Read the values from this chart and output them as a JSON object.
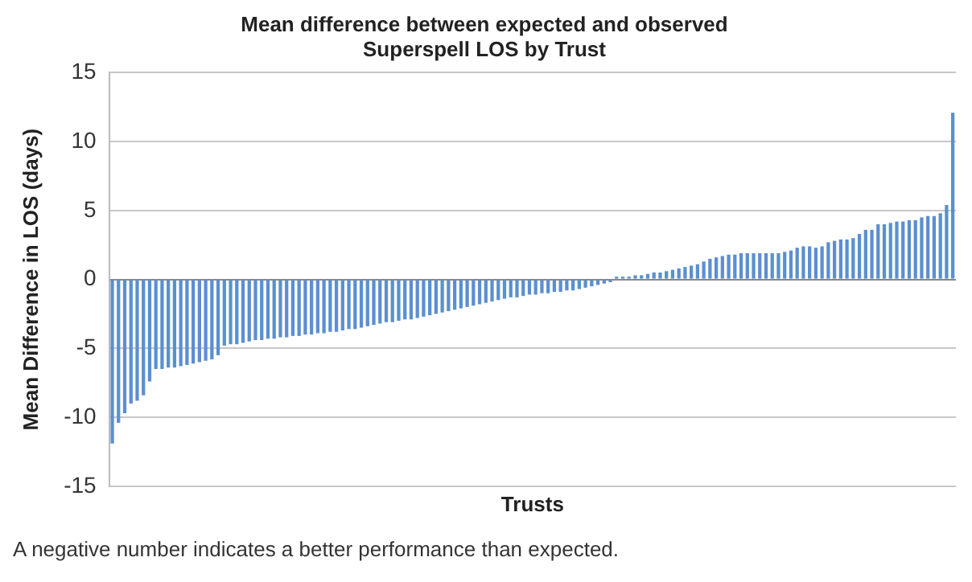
{
  "chart_data": {
    "type": "bar",
    "title": "Mean difference between expected and observed\nSuperspell LOS by Trust",
    "ylabel": "Mean Difference in LOS (days)",
    "xlabel": "Trusts",
    "annotations": [
      "A negative number indicates a better performance than expected."
    ],
    "categories": [
      null,
      null,
      null,
      null,
      null,
      null,
      null,
      null,
      null,
      null,
      null,
      null,
      null,
      null,
      null,
      null,
      null,
      null,
      null,
      null,
      null,
      null,
      null,
      null,
      null,
      null,
      null,
      null,
      null,
      null,
      null,
      null,
      null,
      null,
      null,
      null,
      null,
      null,
      null,
      null,
      null,
      null,
      null,
      null,
      null,
      null,
      null,
      null,
      null,
      null,
      null,
      null,
      null,
      null,
      null,
      null,
      null,
      null,
      null,
      null,
      null,
      null,
      null,
      null,
      null,
      null,
      null,
      null,
      null,
      null,
      null,
      null,
      null,
      null,
      null,
      null,
      null,
      null,
      null,
      null,
      null,
      null,
      null,
      null,
      null,
      null,
      null,
      null,
      null,
      null,
      null,
      null,
      null,
      null,
      null,
      null,
      null,
      null,
      null,
      null,
      null,
      null,
      null,
      null,
      null,
      null,
      null,
      null,
      null,
      null,
      null,
      null,
      null,
      null,
      null,
      null,
      null,
      null,
      null,
      null,
      null,
      null,
      null,
      null,
      null,
      null,
      null,
      null,
      null,
      null,
      null,
      null,
      null,
      null,
      null,
      null
    ],
    "values": [
      -11.9,
      -10.4,
      -9.7,
      -9.0,
      -8.8,
      -8.4,
      -7.4,
      -6.5,
      -6.5,
      -6.4,
      -6.4,
      -6.3,
      -6.2,
      -6.1,
      -6.0,
      -5.9,
      -5.8,
      -5.5,
      -4.8,
      -4.7,
      -4.7,
      -4.6,
      -4.5,
      -4.4,
      -4.4,
      -4.3,
      -4.3,
      -4.2,
      -4.2,
      -4.1,
      -4.1,
      -4.0,
      -4.0,
      -3.9,
      -3.9,
      -3.8,
      -3.8,
      -3.7,
      -3.6,
      -3.6,
      -3.5,
      -3.4,
      -3.3,
      -3.2,
      -3.1,
      -3.1,
      -3.0,
      -2.9,
      -2.9,
      -2.8,
      -2.7,
      -2.6,
      -2.5,
      -2.4,
      -2.3,
      -2.2,
      -2.1,
      -2.0,
      -1.9,
      -1.8,
      -1.7,
      -1.6,
      -1.5,
      -1.4,
      -1.3,
      -1.3,
      -1.2,
      -1.1,
      -1.1,
      -1.0,
      -1.0,
      -0.9,
      -0.9,
      -0.8,
      -0.8,
      -0.7,
      -0.6,
      -0.5,
      -0.4,
      -0.3,
      -0.2,
      0.2,
      0.2,
      0.2,
      0.3,
      0.3,
      0.4,
      0.5,
      0.5,
      0.6,
      0.7,
      0.8,
      0.9,
      1.0,
      1.1,
      1.3,
      1.5,
      1.6,
      1.7,
      1.8,
      1.8,
      1.9,
      1.9,
      1.9,
      1.9,
      1.9,
      1.9,
      1.9,
      2.0,
      2.1,
      2.3,
      2.4,
      2.4,
      2.3,
      2.4,
      2.7,
      2.8,
      2.9,
      2.9,
      3.0,
      3.3,
      3.6,
      3.6,
      4.0,
      4.0,
      4.1,
      4.2,
      4.2,
      4.3,
      4.3,
      4.5,
      4.6,
      4.6,
      4.8,
      5.4,
      12.1
    ],
    "color": "#5b8fd0",
    "ylim": [
      -15,
      15
    ],
    "yticks": [
      -15,
      -10,
      -5,
      0,
      5,
      10,
      15
    ],
    "grid": "y",
    "tick_labels": "y"
  }
}
